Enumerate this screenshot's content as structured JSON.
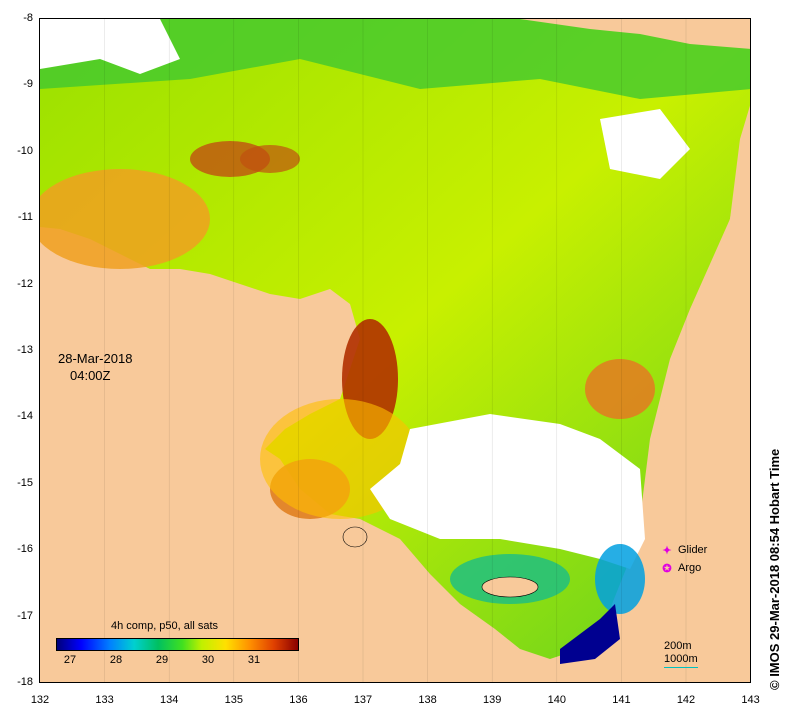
{
  "map": {
    "y_ticks": [
      "-8",
      "-9",
      "-10",
      "-11",
      "-12",
      "-13",
      "-14",
      "-15",
      "-16",
      "-17",
      "-18"
    ],
    "x_ticks": [
      "132",
      "133",
      "134",
      "135",
      "136",
      "137",
      "138",
      "139",
      "140",
      "141",
      "142",
      "143"
    ],
    "date": "28-Mar-2018",
    "time": "04:00Z",
    "colors": {
      "land": "#f8c99a",
      "no_data": "#ffffff"
    }
  },
  "colorbar": {
    "title": "4h comp, p50, all sats",
    "labels": [
      "27",
      "28",
      "29",
      "30",
      "31"
    ]
  },
  "legend": {
    "items": [
      {
        "label": "Glider",
        "icon": "diamond-icon",
        "symbol": "✦"
      },
      {
        "label": "Argo",
        "icon": "circle-icon",
        "symbol": "✪"
      }
    ]
  },
  "scale": {
    "contour1": "200m",
    "contour2": "1000m"
  },
  "credit": "© IMOS 29-Mar-2018 08:54 Hobart Time"
}
